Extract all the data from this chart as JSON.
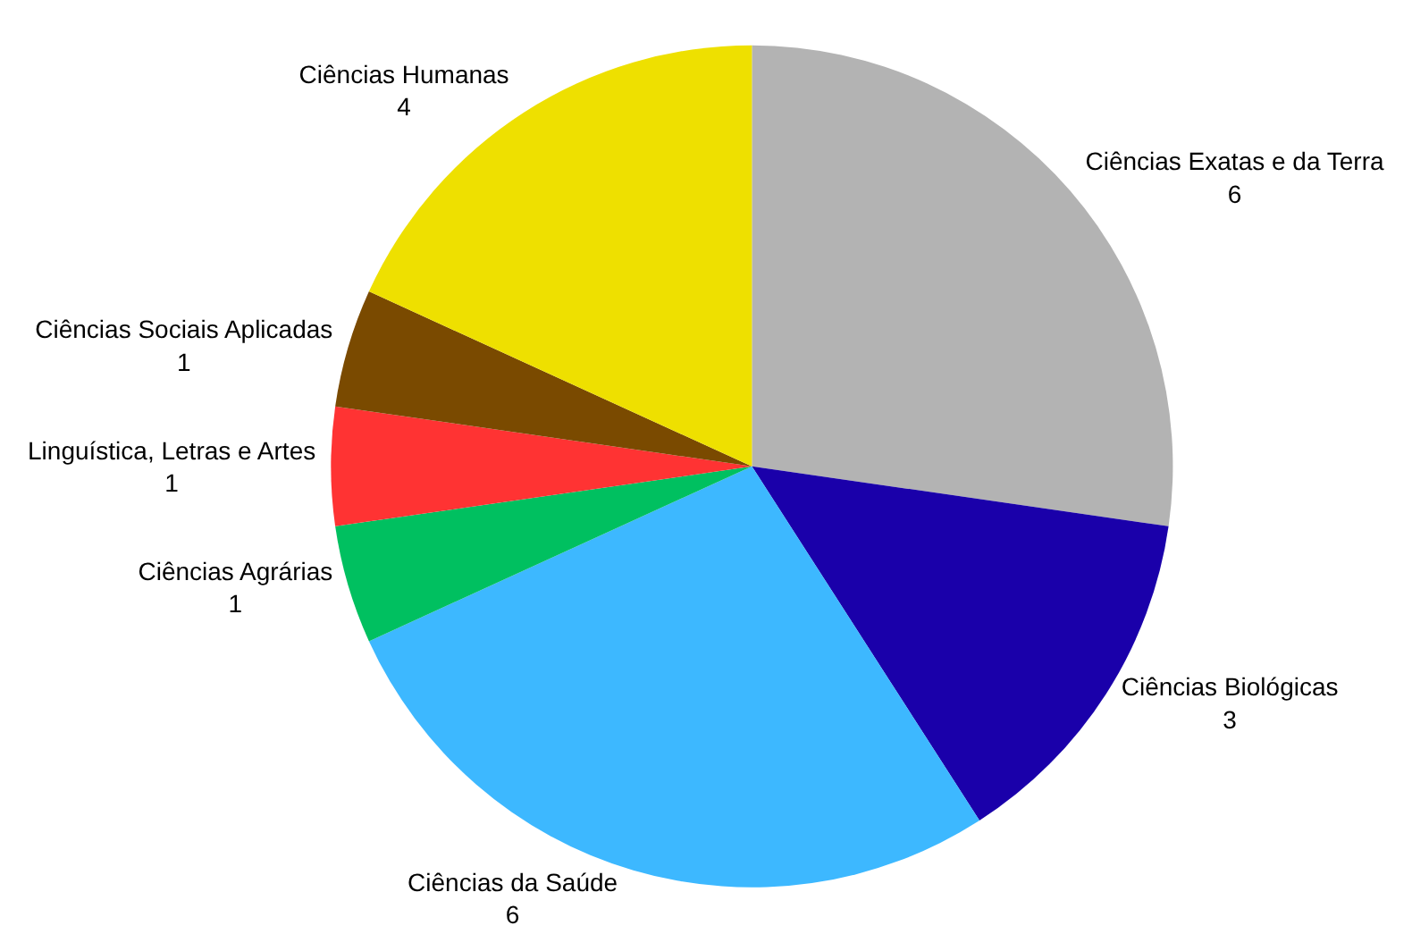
{
  "chart_data": {
    "type": "pie",
    "categories": [
      "Ciências Exatas e da Terra",
      "Ciências Biológicas",
      "Ciências da Saúde",
      "Ciências Agrárias",
      "Linguística, Letras e Artes",
      "Ciências Sociais Aplicadas",
      "Ciências Humanas"
    ],
    "values": [
      6,
      3,
      6,
      1,
      1,
      1,
      4
    ],
    "colors": [
      "#b3b3b3",
      "#1a00aa",
      "#3db8ff",
      "#00c060",
      "#ff3333",
      "#7a4a00",
      "#eee000"
    ],
    "data_labels": true,
    "legend": false
  }
}
